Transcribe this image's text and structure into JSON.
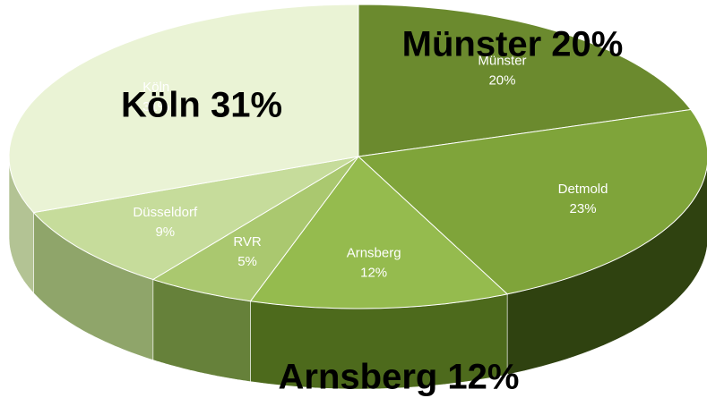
{
  "chart_data": {
    "type": "pie3d",
    "categories": [
      "Münster",
      "Detmold",
      "Arnsberg",
      "RVR",
      "Düsseldorf",
      "Köln"
    ],
    "values": [
      20,
      23,
      12,
      5,
      9,
      31
    ],
    "value_labels": [
      "20%",
      "23%",
      "12%",
      "5%",
      "9%",
      "31%"
    ],
    "colors": [
      "#6b8a2e",
      "#7fa43a",
      "#95bb4e",
      "#aac86f",
      "#c6dc9b",
      "#eaf3d5"
    ],
    "side_colors": [
      "#3f5518",
      "#2f4210",
      "#4d6a1c",
      "#66813a",
      "#8fa56a",
      "#b3c394"
    ],
    "annotations": [
      "Münster 20%",
      "Köln 31%",
      "Arnsberg 12%"
    ]
  }
}
